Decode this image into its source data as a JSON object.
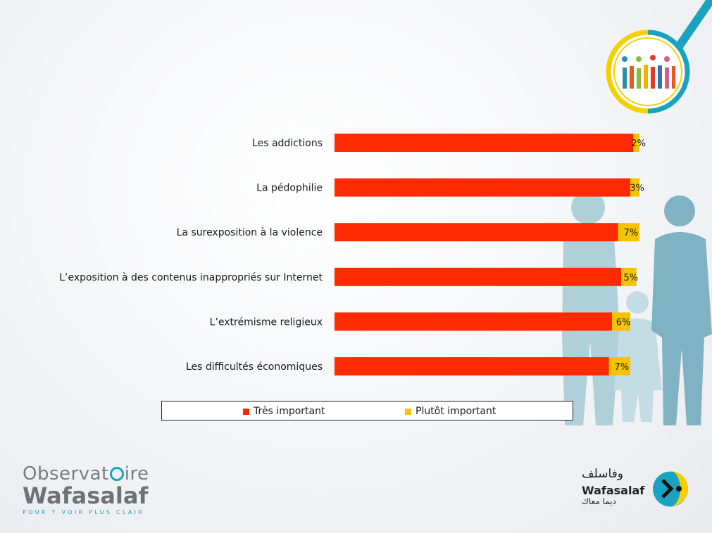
{
  "chart_data": {
    "type": "bar",
    "orientation": "horizontal",
    "stacked": true,
    "categories": [
      "Les addictions",
      "La pédophilie",
      "La surexposition à la violence",
      "L’exposition à des contenus inappropriés sur Internet",
      "L’extrémisme religieux",
      "Les difficultés économiques"
    ],
    "series": [
      {
        "name": "Très important",
        "color": "#ff2a00",
        "values": [
          98,
          97,
          93,
          94,
          91,
          90
        ]
      },
      {
        "name": "Plutôt important",
        "color": "#f5c400",
        "values": [
          2,
          3,
          7,
          5,
          6,
          7
        ]
      }
    ],
    "data_labels": [
      "2%",
      "3%",
      "7%",
      "5%",
      "6%",
      "7%"
    ],
    "xlim": [
      0,
      100
    ],
    "grid": false,
    "legend_position": "bottom"
  },
  "logos": {
    "observatoire": {
      "line1_prefix": "Observat",
      "line1_suffix": "ire",
      "line2": "Wafasalaf",
      "tagline": "POUR Y VOIR PLUS CLAIR"
    },
    "wafasalaf": {
      "arabic_name": "وفاسلف",
      "latin_name": "Wafasalaf",
      "arabic_slogan": "ديما معاك"
    }
  },
  "colors": {
    "accent_teal": "#1aa3c0",
    "accent_yellow": "#f5d000",
    "silhouette": "#8fbccb"
  }
}
